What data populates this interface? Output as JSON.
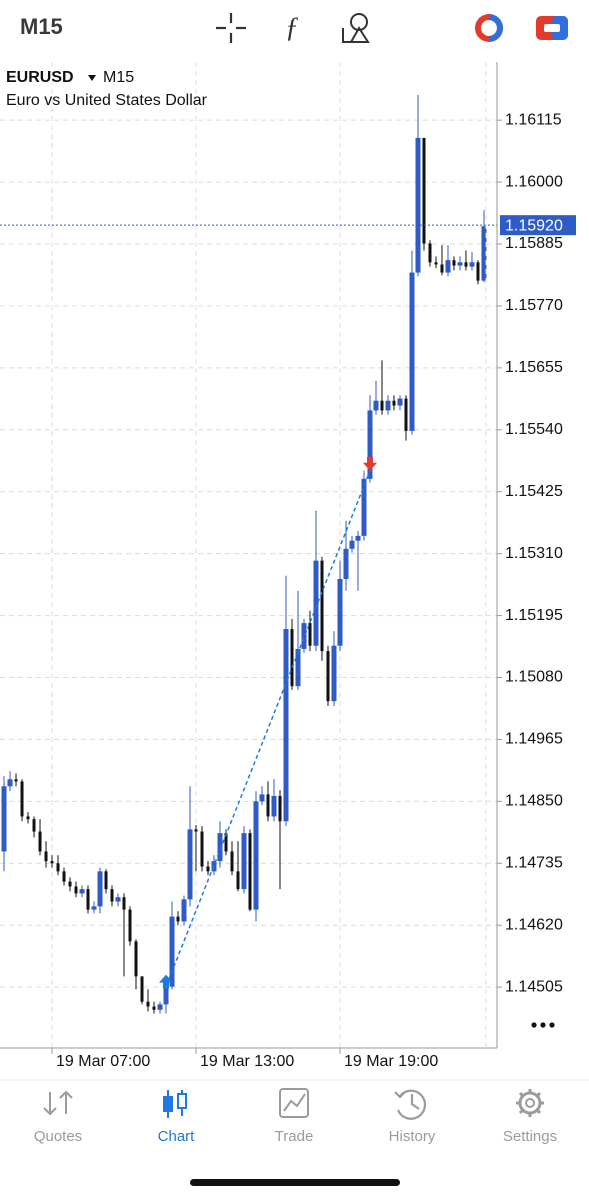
{
  "header": {
    "timeframe": "M15"
  },
  "chart_data": {
    "type": "candlestick",
    "symbol": "EURUSD",
    "timeframe": "M15",
    "description": "Euro vs United States Dollar",
    "open": [
      1.14757,
      1.14878,
      1.14891,
      1.14887,
      1.14822,
      1.14817,
      1.14794,
      1.14757,
      1.14739,
      1.14735,
      1.1472,
      1.14701,
      1.14692,
      1.14679,
      1.14687,
      1.14649,
      1.14655,
      1.1472,
      1.14687,
      1.14664,
      1.14672,
      1.14649,
      1.1459,
      1.14525,
      1.14478,
      1.14469,
      1.14463,
      1.14473,
      1.14506,
      1.14636,
      1.14627,
      1.14668,
      1.14798,
      1.14794,
      1.14729,
      1.1472,
      1.14739,
      1.14791,
      1.14757,
      1.1472,
      1.14687,
      1.14791,
      1.14649,
      1.1485,
      1.14863,
      1.14822,
      1.1486,
      1.14813,
      1.1517,
      1.15064,
      1.15133,
      1.15181,
      1.15139,
      1.15297,
      1.15129,
      1.15036,
      1.15139,
      1.15263,
      1.15319,
      1.15334,
      1.15343,
      1.15449,
      1.15576,
      1.15594,
      1.15576,
      1.15594,
      1.15585,
      1.15598,
      1.15538,
      1.15832,
      1.16082,
      1.15886,
      1.15851,
      1.15847,
      1.15832,
      1.15855,
      1.15845,
      1.15851,
      1.15843,
      1.15851,
      1.15817
    ],
    "high": [
      1.14897,
      1.14906,
      1.14902,
      1.14891,
      1.1483,
      1.14822,
      1.14817,
      1.14776,
      1.1475,
      1.1475,
      1.14727,
      1.14709,
      1.14701,
      1.14694,
      1.14694,
      1.14664,
      1.14727,
      1.14724,
      1.14694,
      1.14679,
      1.14679,
      1.14655,
      1.14594,
      1.14525,
      1.14501,
      1.14478,
      1.14478,
      1.14517,
      1.14664,
      1.14646,
      1.14675,
      1.14878,
      1.14806,
      1.14804,
      1.14739,
      1.1475,
      1.14813,
      1.14798,
      1.14776,
      1.14776,
      1.14804,
      1.14798,
      1.14869,
      1.14878,
      1.14887,
      1.14891,
      1.14871,
      1.15269,
      1.15189,
      1.15241,
      1.15189,
      1.15204,
      1.1539,
      1.15304,
      1.15139,
      1.15166,
      1.15297,
      1.15371,
      1.15343,
      1.15352,
      1.15464,
      1.15604,
      1.15631,
      1.15669,
      1.15604,
      1.15604,
      1.15604,
      1.15604,
      1.15873,
      1.16162,
      1.16082,
      1.15892,
      1.15862,
      1.15883,
      1.15883,
      1.15862,
      1.15862,
      1.15873,
      1.1587,
      1.15855,
      1.15948
    ],
    "low": [
      1.1472,
      1.14869,
      1.14878,
      1.14813,
      1.14809,
      1.14783,
      1.1475,
      1.14727,
      1.14727,
      1.14713,
      1.14694,
      1.14683,
      1.14672,
      1.14672,
      1.14642,
      1.14642,
      1.14642,
      1.14679,
      1.14655,
      1.14655,
      1.14525,
      1.14582,
      1.14501,
      1.14473,
      1.1446,
      1.14456,
      1.14456,
      1.14456,
      1.14501,
      1.1462,
      1.1462,
      1.14655,
      1.1472,
      1.1472,
      1.14713,
      1.14713,
      1.14727,
      1.1475,
      1.14713,
      1.14683,
      1.14679,
      1.14646,
      1.14627,
      1.14843,
      1.14813,
      1.14813,
      1.14687,
      1.14804,
      1.15057,
      1.15057,
      1.15126,
      1.15129,
      1.15129,
      1.15111,
      1.15027,
      1.15027,
      1.15129,
      1.15241,
      1.15312,
      1.15241,
      1.15334,
      1.15442,
      1.15568,
      1.15568,
      1.15568,
      1.15576,
      1.15576,
      1.1552,
      1.15531,
      1.15825,
      1.15873,
      1.15843,
      1.1584,
      1.15827,
      1.15825,
      1.15836,
      1.15836,
      1.15836,
      1.15836,
      1.1581,
      1.15814
    ],
    "close": [
      1.14878,
      1.14891,
      1.14887,
      1.14822,
      1.14817,
      1.14794,
      1.14757,
      1.14739,
      1.14735,
      1.1472,
      1.14701,
      1.14692,
      1.14679,
      1.14687,
      1.14649,
      1.14655,
      1.1472,
      1.14687,
      1.14664,
      1.14672,
      1.14649,
      1.1459,
      1.14525,
      1.14478,
      1.14469,
      1.14463,
      1.14473,
      1.14506,
      1.14636,
      1.14627,
      1.14668,
      1.14798,
      1.14794,
      1.14729,
      1.1472,
      1.14739,
      1.14791,
      1.14757,
      1.1472,
      1.14687,
      1.14791,
      1.14649,
      1.1485,
      1.14863,
      1.14822,
      1.1486,
      1.14813,
      1.1517,
      1.15064,
      1.15133,
      1.15181,
      1.15139,
      1.15297,
      1.15129,
      1.15036,
      1.15139,
      1.15263,
      1.15319,
      1.15334,
      1.15343,
      1.15449,
      1.15576,
      1.15594,
      1.15576,
      1.15594,
      1.15585,
      1.15598,
      1.15538,
      1.15832,
      1.16082,
      1.15886,
      1.15851,
      1.15847,
      1.15832,
      1.15855,
      1.15845,
      1.15851,
      1.15843,
      1.15851,
      1.15817,
      1.15918
    ],
    "up_color": "#2f5bc4",
    "down_color": "#111111",
    "xlim": [
      -0.67,
      82.17
    ],
    "xticks": [
      {
        "value": 8,
        "label": "19 Mar 07:00"
      },
      {
        "value": 32,
        "label": "19 Mar 13:00"
      },
      {
        "value": 56,
        "label": "19 Mar 19:00"
      }
    ],
    "ylim": [
      1.14392,
      1.16223
    ],
    "yticks": [
      1.16115,
      {
        "value": 1.16,
        "label": "1.16000"
      },
      1.15885,
      {
        "value": 1.1577,
        "label": "1.15770"
      },
      1.15655,
      {
        "value": 1.1554,
        "label": "1.15540"
      },
      1.15425,
      {
        "value": 1.1531,
        "label": "1.15310"
      },
      1.15195,
      {
        "value": 1.1508,
        "label": "1.15080"
      },
      1.14965,
      {
        "value": 1.1485,
        "label": "1.14850"
      },
      1.14735,
      {
        "value": 1.1462,
        "label": "1.14620"
      },
      1.14505
    ],
    "grid": true,
    "current_price": {
      "value": 1.1592,
      "label": "1.15920"
    },
    "trade": {
      "x": [
        27,
        61
      ],
      "y": [
        1.14506,
        1.15464
      ]
    }
  },
  "tabs": [
    "Quotes",
    "Chart",
    "Trade",
    "History",
    "Settings"
  ]
}
